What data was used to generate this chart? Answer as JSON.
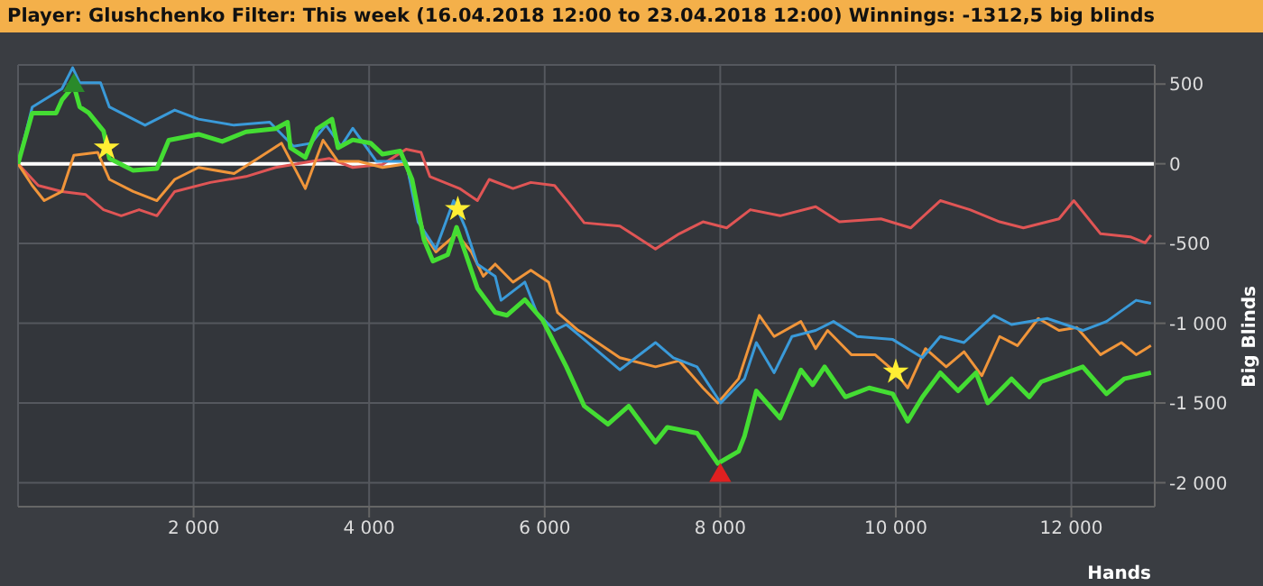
{
  "chart_data": {
    "type": "line",
    "title": "Player: Glushchenko Filter: This week (16.04.2018 12:00 to 23.04.2018 12:00) Winnings: -1312,5 big blinds",
    "xlabel": "Hands",
    "ylabel": "Big Blinds",
    "xlim": [
      0,
      12950
    ],
    "xticks": [
      {
        "value": 2000,
        "label": "2 000"
      },
      {
        "value": 4000,
        "label": "4 000"
      },
      {
        "value": 6000,
        "label": "6 000"
      },
      {
        "value": 8000,
        "label": "8 000"
      },
      {
        "value": 10000,
        "label": "10 000"
      },
      {
        "value": 12000,
        "label": "12 000"
      }
    ],
    "ylim": [
      -2150,
      620
    ],
    "yticks": [
      {
        "value": -2000,
        "label": "-2 000"
      },
      {
        "value": -1500,
        "label": "-1 500"
      },
      {
        "value": -1000,
        "label": "-1 000"
      },
      -500,
      0,
      500
    ],
    "grid": true,
    "ref_lines": [
      {
        "axis": "y",
        "value": 0,
        "color": "#ffffff"
      }
    ],
    "series": [
      {
        "type": "line",
        "color": "#e05555",
        "x": [
          0,
          230,
          500,
          771,
          974,
          1176,
          1379,
          1582,
          1785,
          2191,
          2596,
          2935,
          3543,
          3813,
          4152,
          4421,
          4591,
          4692,
          5030,
          5233,
          5368,
          5639,
          5842,
          6112,
          6281,
          6450,
          6856,
          7262,
          7532,
          7803,
          8073,
          8343,
          8682,
          9087,
          9357,
          9831,
          10169,
          10507,
          10845,
          11183,
          11454,
          11859,
          12028,
          12333,
          12671,
          12840,
          12907
        ],
        "values": [
          0,
          -136,
          -174,
          -193,
          -288,
          -326,
          -288,
          -326,
          -174,
          -117,
          -80,
          -23,
          34,
          -23,
          -4,
          91,
          72,
          -80,
          -155,
          -231,
          -98,
          -155,
          -117,
          -136,
          -250,
          -370,
          -390,
          -534,
          -439,
          -364,
          -402,
          -288,
          -326,
          -269,
          -364,
          -345,
          -402,
          -231,
          -288,
          -364,
          -402,
          -345,
          -231,
          -439,
          -458,
          -496,
          -447
        ]
      },
      {
        "type": "line",
        "color": "#f0953a",
        "x": [
          0,
          162,
          298,
          500,
          636,
          907,
          1041,
          1312,
          1582,
          1785,
          2056,
          2461,
          2732,
          3002,
          3273,
          3475,
          3645,
          3881,
          4152,
          4421,
          4625,
          4760,
          4996,
          5165,
          5300,
          5436,
          5639,
          5842,
          6045,
          6146,
          6383,
          6450,
          6856,
          7262,
          7532,
          7803,
          7972,
          8209,
          8445,
          8614,
          8919,
          9087,
          9223,
          9493,
          9763,
          10000,
          10136,
          10338,
          10574,
          10777,
          10980,
          11183,
          11386,
          11623,
          11859,
          12062,
          12333,
          12570,
          12738,
          12907
        ],
        "values": [
          0,
          -136,
          -231,
          -174,
          53,
          72,
          -98,
          -174,
          -231,
          -98,
          -23,
          -61,
          34,
          129,
          -155,
          148,
          15,
          15,
          -23,
          0,
          -439,
          -553,
          -439,
          -553,
          -705,
          -629,
          -742,
          -667,
          -742,
          -932,
          -1045,
          -1064,
          -1216,
          -1273,
          -1235,
          -1405,
          -1500,
          -1348,
          -951,
          -1083,
          -989,
          -1159,
          -1045,
          -1197,
          -1197,
          -1310,
          -1405,
          -1159,
          -1273,
          -1178,
          -1329,
          -1083,
          -1140,
          -970,
          -1045,
          -1026,
          -1197,
          -1121,
          -1197,
          -1140
        ]
      },
      {
        "type": "line",
        "color": "#3a9ad9",
        "x": [
          0,
          162,
          500,
          622,
          703,
          940,
          1041,
          1447,
          1785,
          2056,
          2461,
          2867,
          3138,
          3340,
          3509,
          3679,
          3813,
          4084,
          4421,
          4557,
          4760,
          4963,
          5097,
          5233,
          5436,
          5503,
          5774,
          5909,
          6112,
          6247,
          6450,
          6856,
          7262,
          7465,
          7735,
          8006,
          8276,
          8411,
          8614,
          8817,
          9087,
          9290,
          9560,
          9966,
          10304,
          10507,
          10777,
          11115,
          11318,
          11724,
          12130,
          12400,
          12738,
          12907
        ],
        "values": [
          0,
          356,
          470,
          602,
          508,
          508,
          356,
          242,
          337,
          280,
          242,
          261,
          110,
          129,
          242,
          110,
          223,
          15,
          15,
          -364,
          -534,
          -231,
          -402,
          -629,
          -705,
          -856,
          -742,
          -932,
          -1045,
          -1008,
          -1102,
          -1292,
          -1121,
          -1216,
          -1273,
          -1500,
          -1348,
          -1121,
          -1310,
          -1083,
          -1045,
          -989,
          -1083,
          -1102,
          -1216,
          -1083,
          -1121,
          -951,
          -1008,
          -970,
          -1045,
          -989,
          -856,
          -875
        ]
      },
      {
        "type": "line",
        "color": "#44dd33",
        "x": [
          0,
          162,
          433,
          500,
          636,
          703,
          805,
          974,
          1041,
          1312,
          1582,
          1717,
          2056,
          2326,
          2596,
          2935,
          3070,
          3103,
          3273,
          3408,
          3577,
          3645,
          3813,
          4016,
          4152,
          4354,
          4489,
          4625,
          4726,
          4895,
          4996,
          5097,
          5233,
          5436,
          5571,
          5774,
          5977,
          6247,
          6450,
          6720,
          6957,
          7262,
          7397,
          7735,
          7972,
          8209,
          8276,
          8411,
          8682,
          8919,
          9053,
          9189,
          9426,
          9696,
          9966,
          10136,
          10304,
          10507,
          10710,
          10913,
          11048,
          11318,
          11521,
          11656,
          12130,
          12400,
          12603,
          12907
        ],
        "values": [
          0,
          318,
          318,
          400,
          490,
          356,
          320,
          205,
          34,
          -42,
          -30,
          148,
          185,
          140,
          200,
          220,
          261,
          100,
          40,
          220,
          280,
          100,
          150,
          130,
          60,
          80,
          -98,
          -477,
          -610,
          -570,
          -398,
          -560,
          -780,
          -932,
          -950,
          -852,
          -980,
          -1273,
          -1519,
          -1633,
          -1519,
          -1746,
          -1652,
          -1689,
          -1879,
          -1803,
          -1708,
          -1424,
          -1595,
          -1292,
          -1386,
          -1273,
          -1462,
          -1405,
          -1443,
          -1614,
          -1462,
          -1310,
          -1424,
          -1310,
          -1500,
          -1348,
          -1462,
          -1367,
          -1273,
          -1443,
          -1348,
          -1310
        ]
      },
      {
        "type": "scatter",
        "color": "#ffee33",
        "marker": "star",
        "x": [
          1010,
          5010,
          10000
        ],
        "values": [
          100,
          -285,
          -1305
        ]
      },
      {
        "type": "scatter",
        "color": "#2a8a2a",
        "marker": "triangle",
        "x": [
          635
        ],
        "values": [
          490
        ]
      },
      {
        "type": "scatter",
        "color": "#e02020",
        "marker": "triangle",
        "x": [
          8000
        ],
        "values": [
          -1955
        ]
      }
    ]
  }
}
